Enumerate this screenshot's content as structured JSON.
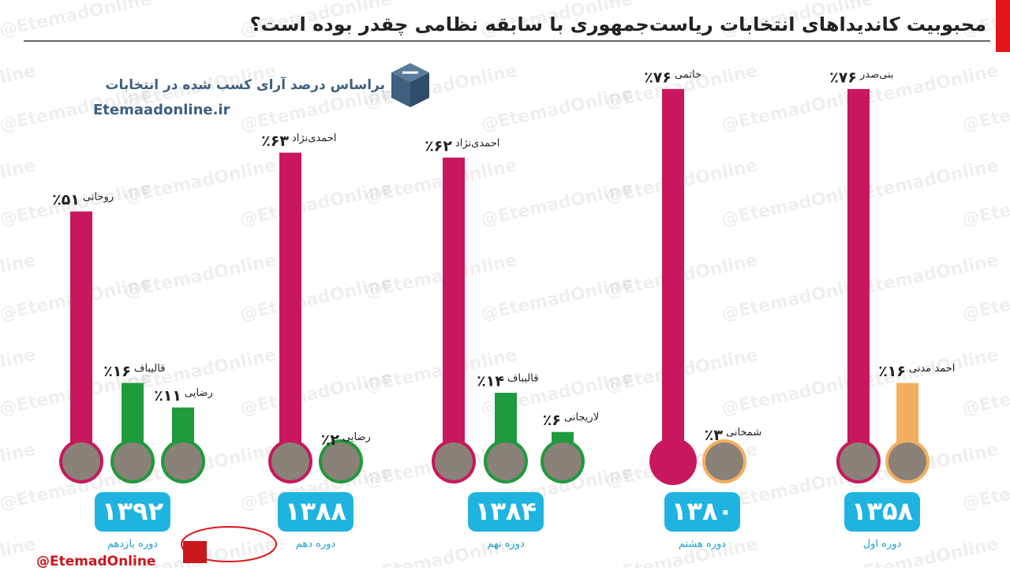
{
  "chart_data": {
    "type": "bar",
    "title": "محبوبیت کاندیداهای انتخابات ریاست‌جمهوری با سابقه نظامی چقدر بوده است؟",
    "subtitle": "براساس درصد آرای کسب شده در انتخابات",
    "source": "Etemaadonline.ir",
    "handle": "@EtemadOnline",
    "watermark": "@EtemadOnline",
    "ylim": [
      0,
      80
    ],
    "groups": [
      {
        "category": "۱۳۹۲",
        "period": "دوره یازدهم",
        "candidates": [
          "روحانی",
          "قالیباف",
          "رضایی"
        ],
        "values": [
          51,
          16,
          11
        ],
        "value_labels": [
          "٪۵۱",
          "٪۱۶",
          "٪۱۱"
        ],
        "colors": [
          "#c8175d",
          "#1f9a3c",
          "#1f9a3c"
        ]
      },
      {
        "category": "۱۳۸۸",
        "period": "دوره دهم",
        "candidates": [
          "احمدی‌نژاد",
          "رضایی"
        ],
        "values": [
          63,
          2
        ],
        "value_labels": [
          "٪۶۳",
          "٪۲"
        ],
        "colors": [
          "#c8175d",
          "#1f9a3c"
        ]
      },
      {
        "category": "۱۳۸۴",
        "period": "دوره نهم",
        "candidates": [
          "احمدی‌نژاد",
          "قالیباف",
          "لاریجانی"
        ],
        "values": [
          62,
          14,
          6
        ],
        "value_labels": [
          "٪۶۲",
          "٪۱۴",
          "٪۶"
        ],
        "colors": [
          "#c8175d",
          "#1f9a3c",
          "#1f9a3c"
        ]
      },
      {
        "category": "۱۳۸۰",
        "period": "دوره هشتم",
        "candidates": [
          "خاتمی",
          "شمخانی"
        ],
        "values": [
          76,
          3
        ],
        "value_labels": [
          "٪۷۶",
          "٪۳"
        ],
        "colors": [
          "#c8175d",
          "#f2b05e"
        ]
      },
      {
        "category": "۱۳۵۸",
        "period": "دوره اول",
        "candidates": [
          "بنی‌صدر",
          "احمد مدنی"
        ],
        "values": [
          76,
          16
        ],
        "value_labels": [
          "٪۷۶",
          "٪۱۶"
        ],
        "colors": [
          "#c8175d",
          "#f2b05e"
        ]
      }
    ]
  }
}
